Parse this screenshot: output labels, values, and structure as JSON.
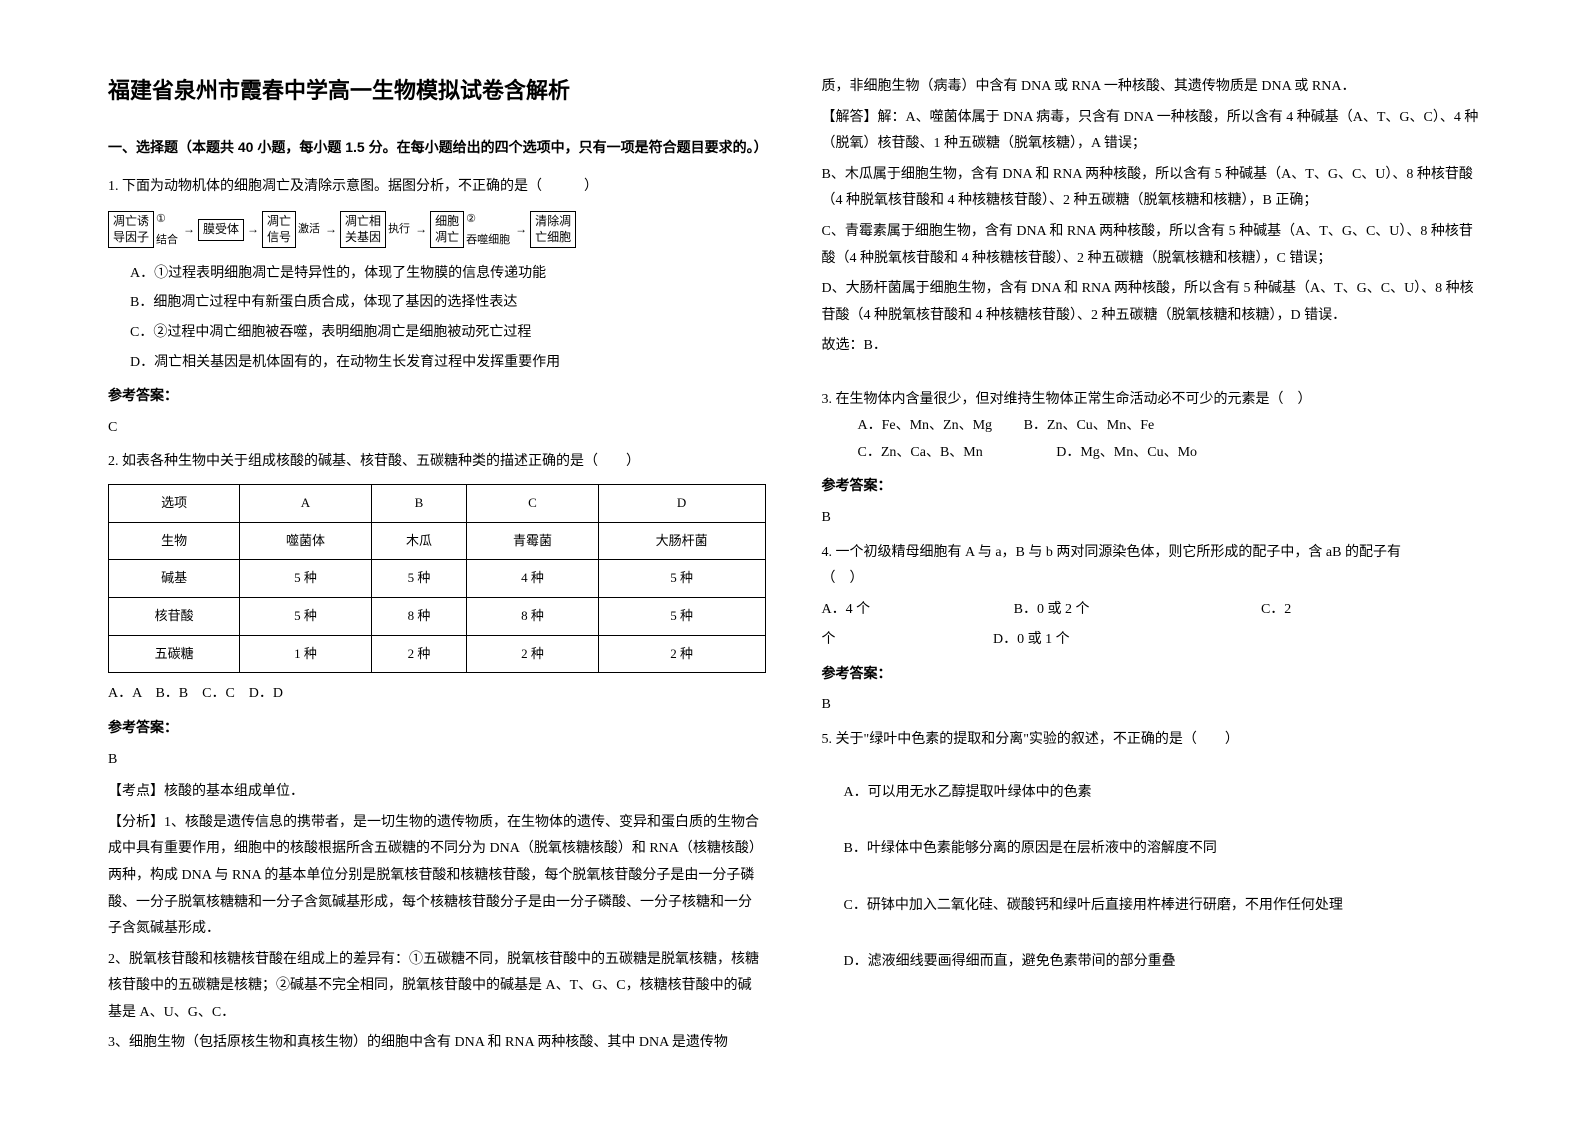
{
  "title": "福建省泉州市霞春中学高一生物模拟试卷含解析",
  "partHeader": "一、选择题（本题共 40 小题，每小题 1.5 分。在每小题给出的四个选项中，只有一项是符合题目要求的。）",
  "q1": {
    "stem": "1. 下面为动物机体的细胞凋亡及清除示意图。据图分析，不正确的是（　　　）",
    "flow": {
      "b1a": "凋亡诱",
      "b1b": "导因子",
      "l1": "①",
      "l1b": "结合",
      "b2": "膜受体",
      "b3a": "凋亡",
      "b3b": "信号",
      "l2": "激活",
      "b4a": "凋亡相",
      "b4b": "关基因",
      "l3": "执行",
      "b5a": "细胞",
      "b5b": "凋亡",
      "l4": "②",
      "l4b": "吞噬细胞",
      "b6a": "清除凋",
      "b6b": "亡细胞"
    },
    "optA": "A．①过程表明细胞凋亡是特异性的，体现了生物膜的信息传递功能",
    "optB": "B．细胞凋亡过程中有新蛋白质合成，体现了基因的选择性表达",
    "optC": "C．②过程中凋亡细胞被吞噬，表明细胞凋亡是细胞被动死亡过程",
    "optD": "D．凋亡相关基因是机体固有的，在动物生长发育过程中发挥重要作用",
    "ansLabel": "参考答案：",
    "ans": "C"
  },
  "q2": {
    "stem": "2. 如表各种生物中关于组成核酸的碱基、核苷酸、五碳糖种类的描述正确的是（　　）",
    "table": {
      "headers": [
        "选项",
        "A",
        "B",
        "C",
        "D"
      ],
      "rows": [
        [
          "生物",
          "噬菌体",
          "木瓜",
          "青霉菌",
          "大肠杆菌"
        ],
        [
          "碱基",
          "5 种",
          "5 种",
          "4 种",
          "5 种"
        ],
        [
          "核苷酸",
          "5 种",
          "8 种",
          "8 种",
          "5 种"
        ],
        [
          "五碳糖",
          "1 种",
          "2 种",
          "2 种",
          "2 种"
        ]
      ]
    },
    "choices": "A．A　B．B　C．C　D．D",
    "ansLabel": "参考答案：",
    "ans": "B",
    "kp": "【考点】核酸的基本组成单位．",
    "an1": "【分析】1、核酸是遗传信息的携带者，是一切生物的遗传物质，在生物体的遗传、变异和蛋白质的生物合成中具有重要作用，细胞中的核酸根据所含五碳糖的不同分为 DNA（脱氧核糖核酸）和 RNA（核糖核酸）两种，构成 DNA 与 RNA 的基本单位分别是脱氧核苷酸和核糖核苷酸，每个脱氧核苷酸分子是由一分子磷酸、一分子脱氧核糖糖和一分子含氮碱基形成，每个核糖核苷酸分子是由一分子磷酸、一分子核糖和一分子含氮碱基形成．",
    "an2": "2、脱氧核苷酸和核糖核苷酸在组成上的差异有：①五碳糖不同，脱氧核苷酸中的五碳糖是脱氧核糖，核糖核苷酸中的五碳糖是核糖；②碱基不完全相同，脱氧核苷酸中的碱基是 A、T、G、C，核糖核苷酸中的碱基是 A、U、G、C．",
    "an3": "3、细胞生物（包括原核生物和真核生物）的细胞中含有 DNA 和 RNA 两种核酸、其中 DNA 是遗传物"
  },
  "right": {
    "p1": "质，非细胞生物（病毒）中含有 DNA 或 RNA 一种核酸、其遗传物质是 DNA 或 RNA．",
    "p2": "【解答】解：A、噬菌体属于 DNA 病毒，只含有 DNA 一种核酸，所以含有 4 种碱基（A、T、G、C）、4 种（脱氧）核苷酸、1 种五碳糖（脱氧核糖），A 错误；",
    "p3": "B、木瓜属于细胞生物，含有 DNA 和 RNA 两种核酸，所以含有 5 种碱基（A、T、G、C、U）、8 种核苷酸（4 种脱氧核苷酸和 4 种核糖核苷酸）、2 种五碳糖（脱氧核糖和核糖），B 正确；",
    "p4": "C、青霉素属于细胞生物，含有 DNA 和 RNA 两种核酸，所以含有 5 种碱基（A、T、G、C、U）、8 种核苷酸（4 种脱氧核苷酸和 4 种核糖核苷酸）、2 种五碳糖（脱氧核糖和核糖），C 错误；",
    "p5": "D、大肠杆菌属于细胞生物，含有 DNA 和 RNA 两种核酸，所以含有 5 种碱基（A、T、G、C、U）、8 种核苷酸（4 种脱氧核苷酸和 4 种核糖核苷酸）、2 种五碳糖（脱氧核糖和核糖），D 错误．",
    "p6": "故选：B．"
  },
  "q3": {
    "stem": "3. 在生物体内含量很少，但对维持生物体正常生命活动必不可少的元素是（　）",
    "optA": "A．Fe、Mn、Zn、Mg",
    "optB": "B．Zn、Cu、Mn、Fe",
    "optC": "C．Zn、Ca、B、Mn",
    "optD": "D．Mg、Mn、Cu、Mo",
    "ansLabel": "参考答案：",
    "ans": "B"
  },
  "q4": {
    "stem": "4. 一个初级精母细胞有 A 与 a，B 与 b 两对同源染色体，则它所形成的配子中，含 aB 的配子有　　　　　　　　　　　（　）",
    "optA": "A．4 个",
    "optB": "B．0 或 2 个",
    "optC": "C．2",
    "cline": "个",
    "optD": "D．0 或 1 个",
    "ansLabel": "参考答案：",
    "ans": "B"
  },
  "q5": {
    "stem": "5. 关于\"绿叶中色素的提取和分离\"实验的叙述，不正确的是（　　）",
    "optA": "A．可以用无水乙醇提取叶绿体中的色素",
    "optB": "B．叶绿体中色素能够分离的原因是在层析液中的溶解度不同",
    "optC": "C．研钵中加入二氧化硅、碳酸钙和绿叶后直接用杵棒进行研磨，不用作任何处理",
    "optD": "D．滤液细线要画得细而直，避免色素带间的部分重叠"
  }
}
